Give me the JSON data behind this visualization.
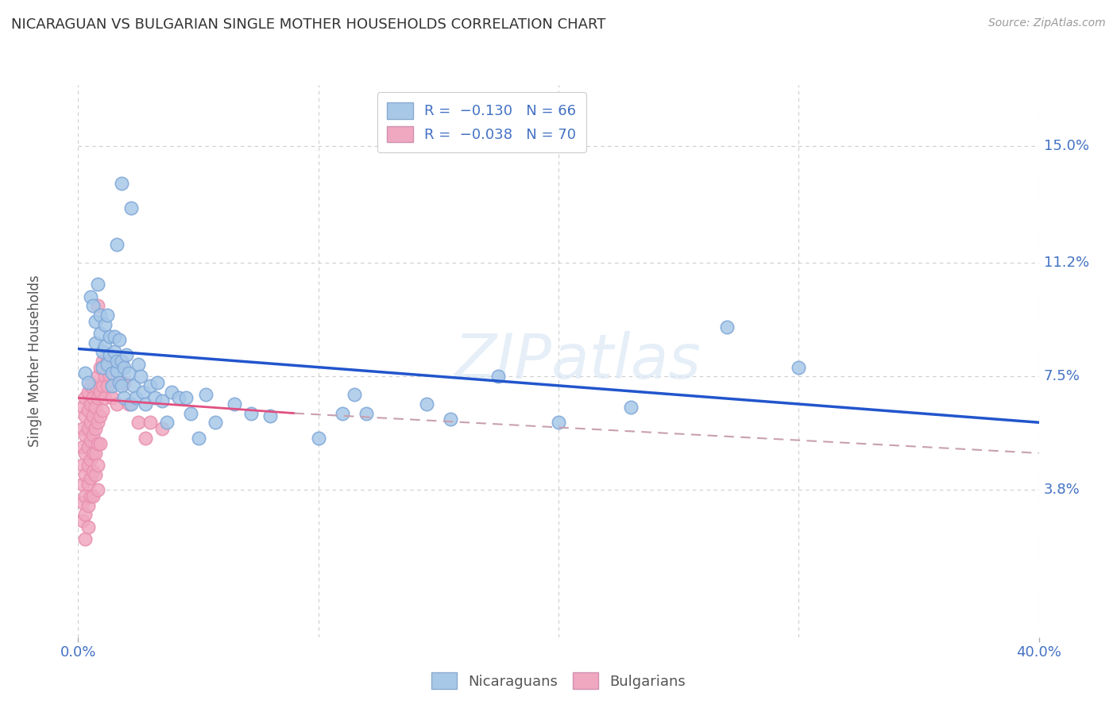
{
  "title": "NICARAGUAN VS BULGARIAN SINGLE MOTHER HOUSEHOLDS CORRELATION CHART",
  "source": "Source: ZipAtlas.com",
  "ylabel": "Single Mother Households",
  "ytick_labels": [
    "3.8%",
    "7.5%",
    "11.2%",
    "15.0%"
  ],
  "ytick_values": [
    0.038,
    0.075,
    0.112,
    0.15
  ],
  "xlim": [
    0.0,
    0.4
  ],
  "ylim": [
    -0.01,
    0.17
  ],
  "watermark": "ZIPatlas",
  "legend_blue_label": "Nicaraguans",
  "legend_pink_label": "Bulgarians",
  "blue_color": "#A8C8E8",
  "pink_color": "#F0A8C0",
  "blue_line_color": "#2255CC",
  "pink_line_color": "#E05080",
  "pink_dashed_color": "#C8A0B0",
  "background_color": "#FFFFFF",
  "grid_color": "#CCCCCC",
  "title_color": "#333333",
  "axis_label_color": "#4472C4",
  "blue_scatter": [
    [
      0.003,
      0.076
    ],
    [
      0.004,
      0.073
    ],
    [
      0.005,
      0.101
    ],
    [
      0.006,
      0.098
    ],
    [
      0.007,
      0.093
    ],
    [
      0.007,
      0.086
    ],
    [
      0.008,
      0.105
    ],
    [
      0.009,
      0.095
    ],
    [
      0.009,
      0.089
    ],
    [
      0.01,
      0.083
    ],
    [
      0.01,
      0.078
    ],
    [
      0.011,
      0.092
    ],
    [
      0.011,
      0.085
    ],
    [
      0.012,
      0.079
    ],
    [
      0.012,
      0.095
    ],
    [
      0.013,
      0.088
    ],
    [
      0.013,
      0.082
    ],
    [
      0.014,
      0.076
    ],
    [
      0.014,
      0.072
    ],
    [
      0.015,
      0.088
    ],
    [
      0.015,
      0.083
    ],
    [
      0.016,
      0.077
    ],
    [
      0.016,
      0.08
    ],
    [
      0.017,
      0.073
    ],
    [
      0.017,
      0.087
    ],
    [
      0.018,
      0.08
    ],
    [
      0.018,
      0.072
    ],
    [
      0.019,
      0.078
    ],
    [
      0.019,
      0.068
    ],
    [
      0.02,
      0.082
    ],
    [
      0.021,
      0.076
    ],
    [
      0.022,
      0.066
    ],
    [
      0.023,
      0.072
    ],
    [
      0.024,
      0.068
    ],
    [
      0.025,
      0.079
    ],
    [
      0.026,
      0.075
    ],
    [
      0.027,
      0.07
    ],
    [
      0.028,
      0.066
    ],
    [
      0.03,
      0.072
    ],
    [
      0.032,
      0.068
    ],
    [
      0.033,
      0.073
    ],
    [
      0.035,
      0.067
    ],
    [
      0.037,
      0.06
    ],
    [
      0.039,
      0.07
    ],
    [
      0.042,
      0.068
    ],
    [
      0.045,
      0.068
    ],
    [
      0.047,
      0.063
    ],
    [
      0.05,
      0.055
    ],
    [
      0.053,
      0.069
    ],
    [
      0.057,
      0.06
    ],
    [
      0.065,
      0.066
    ],
    [
      0.072,
      0.063
    ],
    [
      0.08,
      0.062
    ],
    [
      0.1,
      0.055
    ],
    [
      0.11,
      0.063
    ],
    [
      0.115,
      0.069
    ],
    [
      0.12,
      0.063
    ],
    [
      0.145,
      0.066
    ],
    [
      0.155,
      0.061
    ],
    [
      0.175,
      0.075
    ],
    [
      0.2,
      0.06
    ],
    [
      0.23,
      0.065
    ],
    [
      0.3,
      0.078
    ],
    [
      0.018,
      0.138
    ],
    [
      0.022,
      0.13
    ],
    [
      0.016,
      0.118
    ],
    [
      0.27,
      0.091
    ]
  ],
  "pink_scatter": [
    [
      0.002,
      0.065
    ],
    [
      0.002,
      0.058
    ],
    [
      0.002,
      0.052
    ],
    [
      0.002,
      0.046
    ],
    [
      0.002,
      0.04
    ],
    [
      0.002,
      0.034
    ],
    [
      0.002,
      0.028
    ],
    [
      0.003,
      0.068
    ],
    [
      0.003,
      0.062
    ],
    [
      0.003,
      0.056
    ],
    [
      0.003,
      0.05
    ],
    [
      0.003,
      0.043
    ],
    [
      0.003,
      0.036
    ],
    [
      0.003,
      0.03
    ],
    [
      0.003,
      0.022
    ],
    [
      0.004,
      0.07
    ],
    [
      0.004,
      0.064
    ],
    [
      0.004,
      0.058
    ],
    [
      0.004,
      0.052
    ],
    [
      0.004,
      0.046
    ],
    [
      0.004,
      0.04
    ],
    [
      0.004,
      0.033
    ],
    [
      0.004,
      0.026
    ],
    [
      0.005,
      0.072
    ],
    [
      0.005,
      0.066
    ],
    [
      0.005,
      0.06
    ],
    [
      0.005,
      0.054
    ],
    [
      0.005,
      0.048
    ],
    [
      0.005,
      0.042
    ],
    [
      0.005,
      0.036
    ],
    [
      0.006,
      0.068
    ],
    [
      0.006,
      0.062
    ],
    [
      0.006,
      0.056
    ],
    [
      0.006,
      0.05
    ],
    [
      0.006,
      0.044
    ],
    [
      0.006,
      0.036
    ],
    [
      0.007,
      0.072
    ],
    [
      0.007,
      0.065
    ],
    [
      0.007,
      0.058
    ],
    [
      0.007,
      0.05
    ],
    [
      0.007,
      0.043
    ],
    [
      0.008,
      0.098
    ],
    [
      0.008,
      0.075
    ],
    [
      0.008,
      0.068
    ],
    [
      0.008,
      0.06
    ],
    [
      0.008,
      0.053
    ],
    [
      0.008,
      0.046
    ],
    [
      0.008,
      0.038
    ],
    [
      0.009,
      0.078
    ],
    [
      0.009,
      0.07
    ],
    [
      0.009,
      0.062
    ],
    [
      0.009,
      0.053
    ],
    [
      0.01,
      0.08
    ],
    [
      0.01,
      0.072
    ],
    [
      0.01,
      0.064
    ],
    [
      0.011,
      0.075
    ],
    [
      0.011,
      0.068
    ],
    [
      0.012,
      0.08
    ],
    [
      0.012,
      0.072
    ],
    [
      0.013,
      0.075
    ],
    [
      0.014,
      0.068
    ],
    [
      0.015,
      0.073
    ],
    [
      0.016,
      0.066
    ],
    [
      0.018,
      0.08
    ],
    [
      0.019,
      0.073
    ],
    [
      0.021,
      0.066
    ],
    [
      0.025,
      0.06
    ],
    [
      0.028,
      0.055
    ],
    [
      0.03,
      0.06
    ],
    [
      0.035,
      0.058
    ]
  ],
  "blue_trend": [
    0.0,
    0.4,
    0.084,
    0.06
  ],
  "pink_solid_trend": [
    0.0,
    0.09,
    0.068,
    0.063
  ],
  "pink_dashed_trend": [
    0.09,
    0.4,
    0.063,
    0.05
  ]
}
